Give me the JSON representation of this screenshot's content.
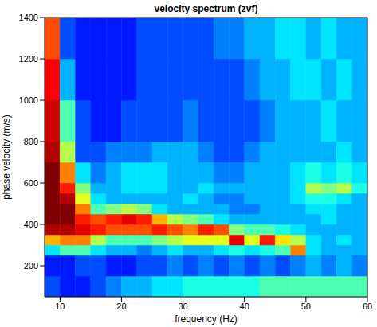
{
  "chart_data": {
    "type": "heatmap",
    "title": "velocity spectrum (zvf)",
    "x_label": "frequency (Hz)",
    "y_label": "phase velocity (m/s)",
    "xlim": [
      7.5,
      60
    ],
    "ylim": [
      50,
      1400
    ],
    "xticks": [
      10,
      20,
      30,
      40,
      50,
      60
    ],
    "yticks": [
      200,
      400,
      600,
      800,
      1000,
      1200,
      1400
    ],
    "color_range": [
      0,
      1
    ],
    "x_edges": [
      7.5,
      10,
      12.5,
      15,
      17.5,
      20,
      22.5,
      25,
      27.5,
      30,
      32.5,
      35,
      37.5,
      40,
      42.5,
      45,
      47.5,
      50,
      52.5,
      55,
      57.5,
      60
    ],
    "y_edges": [
      50,
      150,
      250,
      300,
      350,
      400,
      450,
      500,
      550,
      600,
      700,
      800,
      1000,
      1200,
      1400
    ],
    "values": [
      [
        0.2,
        0.15,
        0.15,
        0.2,
        0.25,
        0.3,
        0.3,
        0.35,
        0.35,
        0.4,
        0.4,
        0.4,
        0.4,
        0.4,
        0.45,
        0.45,
        0.45,
        0.45,
        0.45,
        0.45,
        0.45
      ],
      [
        0.15,
        0.15,
        0.2,
        0.2,
        0.15,
        0.15,
        0.2,
        0.2,
        0.25,
        0.2,
        0.25,
        0.2,
        0.25,
        0.2,
        0.25,
        0.2,
        0.25,
        0.3,
        0.25,
        0.3,
        0.25
      ],
      [
        0.35,
        0.45,
        0.45,
        0.35,
        0.3,
        0.3,
        0.25,
        0.3,
        0.35,
        0.3,
        0.3,
        0.35,
        0.4,
        0.35,
        0.4,
        0.45,
        0.75,
        0.35,
        0.3,
        0.3,
        0.3
      ],
      [
        0.7,
        0.75,
        0.75,
        0.55,
        0.45,
        0.45,
        0.45,
        0.5,
        0.55,
        0.6,
        0.6,
        0.6,
        0.9,
        0.6,
        0.85,
        0.65,
        0.55,
        0.35,
        0.3,
        0.35,
        0.3
      ],
      [
        0.95,
        0.95,
        0.9,
        0.85,
        0.8,
        0.8,
        0.8,
        0.85,
        0.8,
        0.75,
        0.85,
        0.8,
        0.5,
        0.45,
        0.45,
        0.4,
        0.35,
        0.3,
        0.3,
        0.3,
        0.3
      ],
      [
        1,
        1,
        0.85,
        0.8,
        0.85,
        0.9,
        0.85,
        0.7,
        0.55,
        0.5,
        0.45,
        0.35,
        0.3,
        0.3,
        0.3,
        0.3,
        0.3,
        0.3,
        0.35,
        0.3,
        0.3
      ],
      [
        1,
        1,
        0.75,
        0.45,
        0.5,
        0.55,
        0.5,
        0.35,
        0.3,
        0.3,
        0.3,
        0.3,
        0.25,
        0.25,
        0.3,
        0.3,
        0.3,
        0.35,
        0.35,
        0.3,
        0.3
      ],
      [
        1,
        0.95,
        0.6,
        0.35,
        0.3,
        0.3,
        0.3,
        0.3,
        0.3,
        0.35,
        0.3,
        0.25,
        0.25,
        0.3,
        0.3,
        0.3,
        0.35,
        0.4,
        0.4,
        0.35,
        0.3
      ],
      [
        1,
        0.85,
        0.5,
        0.3,
        0.3,
        0.35,
        0.35,
        0.35,
        0.3,
        0.3,
        0.35,
        0.3,
        0.3,
        0.3,
        0.3,
        0.3,
        0.35,
        0.55,
        0.5,
        0.55,
        0.4
      ],
      [
        1,
        0.75,
        0.35,
        0.25,
        0.3,
        0.35,
        0.35,
        0.35,
        0.3,
        0.3,
        0.3,
        0.25,
        0.25,
        0.3,
        0.3,
        0.3,
        0.35,
        0.4,
        0.35,
        0.4,
        0.35
      ],
      [
        0.95,
        0.55,
        0.2,
        0.2,
        0.25,
        0.25,
        0.25,
        0.3,
        0.3,
        0.3,
        0.25,
        0.2,
        0.2,
        0.25,
        0.3,
        0.3,
        0.3,
        0.3,
        0.3,
        0.35,
        0.3
      ],
      [
        0.92,
        0.45,
        0.2,
        0.15,
        0.15,
        0.2,
        0.2,
        0.2,
        0.2,
        0.25,
        0.2,
        0.2,
        0.2,
        0.2,
        0.25,
        0.3,
        0.3,
        0.3,
        0.35,
        0.3,
        0.3
      ],
      [
        0.88,
        0.3,
        0.15,
        0.15,
        0.15,
        0.15,
        0.2,
        0.2,
        0.2,
        0.2,
        0.2,
        0.2,
        0.2,
        0.25,
        0.3,
        0.3,
        0.35,
        0.35,
        0.3,
        0.35,
        0.3
      ],
      [
        0.8,
        0.2,
        0.15,
        0.15,
        0.15,
        0.15,
        0.2,
        0.2,
        0.2,
        0.2,
        0.2,
        0.25,
        0.25,
        0.3,
        0.3,
        0.35,
        0.35,
        0.3,
        0.35,
        0.3,
        0.3
      ]
    ]
  }
}
